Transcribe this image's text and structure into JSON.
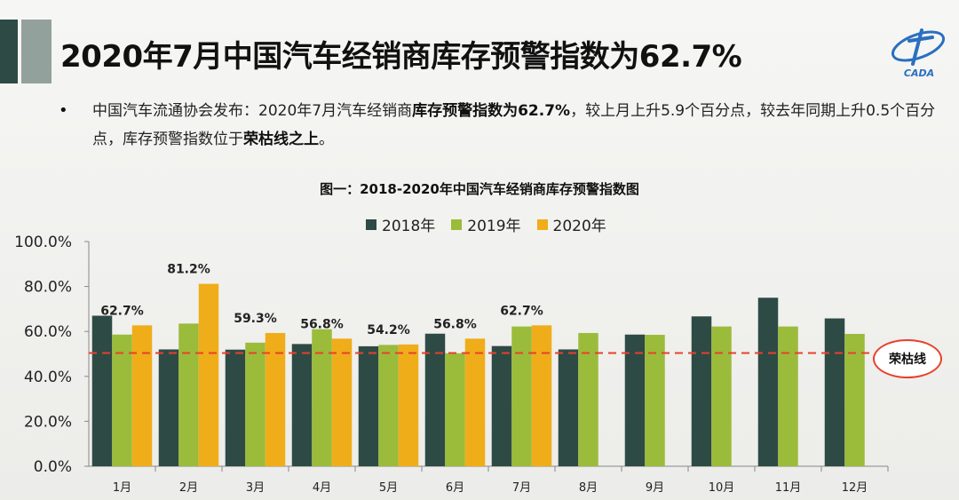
{
  "title": "2020年7月中国汽车经销商库存预警指数为62.7%",
  "logo": {
    "text": "CADA"
  },
  "bullet": {
    "part1": "中国汽车流通协会发布：2020年7月汽车经销商",
    "bold1": "库存预警指数为62.7%",
    "part2": "，较上月上升5.9个百分点，较去年同期上升0.5个百分点，库存预警指数位于",
    "bold2": "荣枯线之上",
    "part3": "。"
  },
  "colors": {
    "s2018": "#2e4a45",
    "s2019": "#9bbb3b",
    "s2020": "#f0ad1a",
    "ref": "#e8402a"
  },
  "chart_data": {
    "type": "bar",
    "title": "图一：2018-2020年中国汽车经销商库存预警指数图",
    "categories": [
      "1月",
      "2月",
      "3月",
      "4月",
      "5月",
      "6月",
      "7月",
      "8月",
      "9月",
      "10月",
      "11月",
      "12月"
    ],
    "series": [
      {
        "name": "2018年",
        "values": [
          67.0,
          52.0,
          51.9,
          54.4,
          53.4,
          59.0,
          53.5,
          52.0,
          58.6,
          66.7,
          75.0,
          65.8
        ]
      },
      {
        "name": "2019年",
        "values": [
          58.6,
          63.5,
          55.0,
          61.0,
          54.0,
          50.3,
          62.2,
          59.3,
          58.5,
          62.2,
          62.2,
          58.9
        ]
      },
      {
        "name": "2020年",
        "values": [
          62.7,
          81.2,
          59.3,
          56.8,
          54.2,
          56.8,
          62.7,
          null,
          null,
          null,
          null,
          null
        ]
      }
    ],
    "data_labels": [
      "62.7%",
      "81.2%",
      "59.3%",
      "56.8%",
      "54.2%",
      "56.8%",
      "62.7%"
    ],
    "yticks": [
      "100.0%",
      "80.0%",
      "60.0%",
      "40.0%",
      "20.0%",
      "0.0%"
    ],
    "ylim": [
      0,
      100
    ],
    "reference_line": {
      "value": 50,
      "label": "荣枯线"
    },
    "legend_position": "top-center"
  }
}
